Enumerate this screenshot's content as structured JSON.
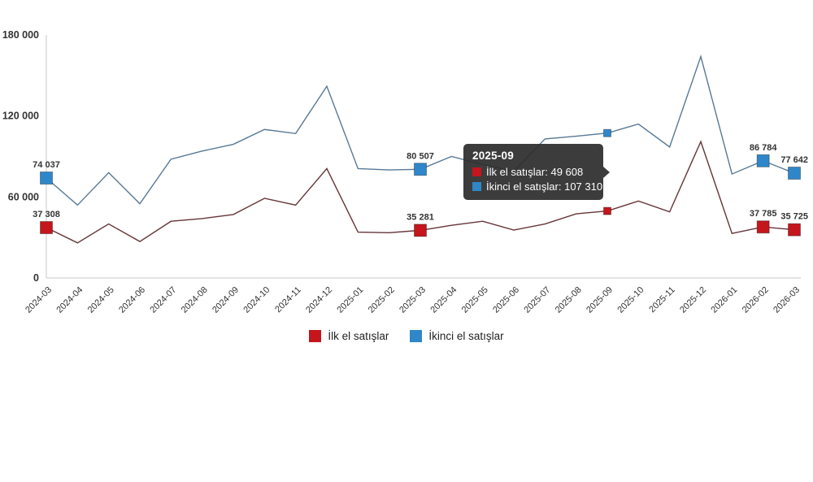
{
  "chart_data": {
    "type": "line",
    "title": "",
    "xlabel": "",
    "ylabel": "",
    "categories": [
      "2024-03",
      "2024-04",
      "2024-05",
      "2024-06",
      "2024-07",
      "2024-08",
      "2024-09",
      "2024-10",
      "2024-11",
      "2024-12",
      "2025-01",
      "2025-02",
      "2025-03",
      "2025-04",
      "2025-05",
      "2025-06",
      "2025-07",
      "2025-08",
      "2025-09",
      "2025-10",
      "2025-11",
      "2025-12",
      "2026-01",
      "2026-02",
      "2026-03"
    ],
    "series": [
      {
        "name": "İlk el satışlar",
        "marker_color": "#c4161c",
        "line_color": "#663538",
        "values": [
          37308,
          26000,
          40000,
          27000,
          42000,
          44000,
          47000,
          59000,
          54000,
          81000,
          34000,
          33500,
          35281,
          39000,
          42000,
          35500,
          40000,
          47500,
          49608,
          57000,
          49000,
          101000,
          33000,
          37785,
          35725
        ]
      },
      {
        "name": "İkinci el satışlar",
        "marker_color": "#2f87c9",
        "line_color": "#587995",
        "values": [
          74037,
          54000,
          78000,
          55000,
          88000,
          94000,
          99000,
          110000,
          107000,
          142000,
          81000,
          80000,
          80507,
          90000,
          84000,
          79000,
          103000,
          105000,
          107310,
          114000,
          97000,
          164000,
          77000,
          86784,
          77642
        ]
      }
    ],
    "ylim": [
      0,
      180000
    ],
    "y_ticks": [
      {
        "value": 0,
        "label": "0"
      },
      {
        "value": 60000,
        "label": "60 000"
      },
      {
        "value": 120000,
        "label": "120 000"
      },
      {
        "value": 180000,
        "label": "180 000"
      }
    ],
    "grid": false,
    "legend_position": "bottom",
    "labeled_points": [
      {
        "series": 0,
        "index": 0,
        "label": "37 308"
      },
      {
        "series": 1,
        "index": 0,
        "label": "74 037"
      },
      {
        "series": 0,
        "index": 12,
        "label": "35 281"
      },
      {
        "series": 1,
        "index": 12,
        "label": "80 507"
      },
      {
        "series": 0,
        "index": 23,
        "label": "37 785"
      },
      {
        "series": 1,
        "index": 23,
        "label": "86 784"
      },
      {
        "series": 0,
        "index": 24,
        "label": "35 725"
      },
      {
        "series": 1,
        "index": 24,
        "label": "77 642"
      }
    ],
    "hover_index": 18,
    "hover_category": "2025-09"
  },
  "tooltip": {
    "title": "2025-09",
    "rows": [
      {
        "text": "İlk el satışlar: 49 608",
        "color": "#c4161c"
      },
      {
        "text": "İkinci el satışlar: 107 310",
        "color": "#2f87c9"
      }
    ]
  },
  "legend": {
    "items": [
      {
        "label": "İlk el satışlar",
        "color": "#c4161c"
      },
      {
        "label": "İkinci el satışlar",
        "color": "#2f87c9"
      }
    ]
  },
  "colors": {
    "axis_line": "#c9c9c9",
    "tick_label": "#333333",
    "data_label": "#333333",
    "tooltip_bg": "#2d2d2d"
  }
}
